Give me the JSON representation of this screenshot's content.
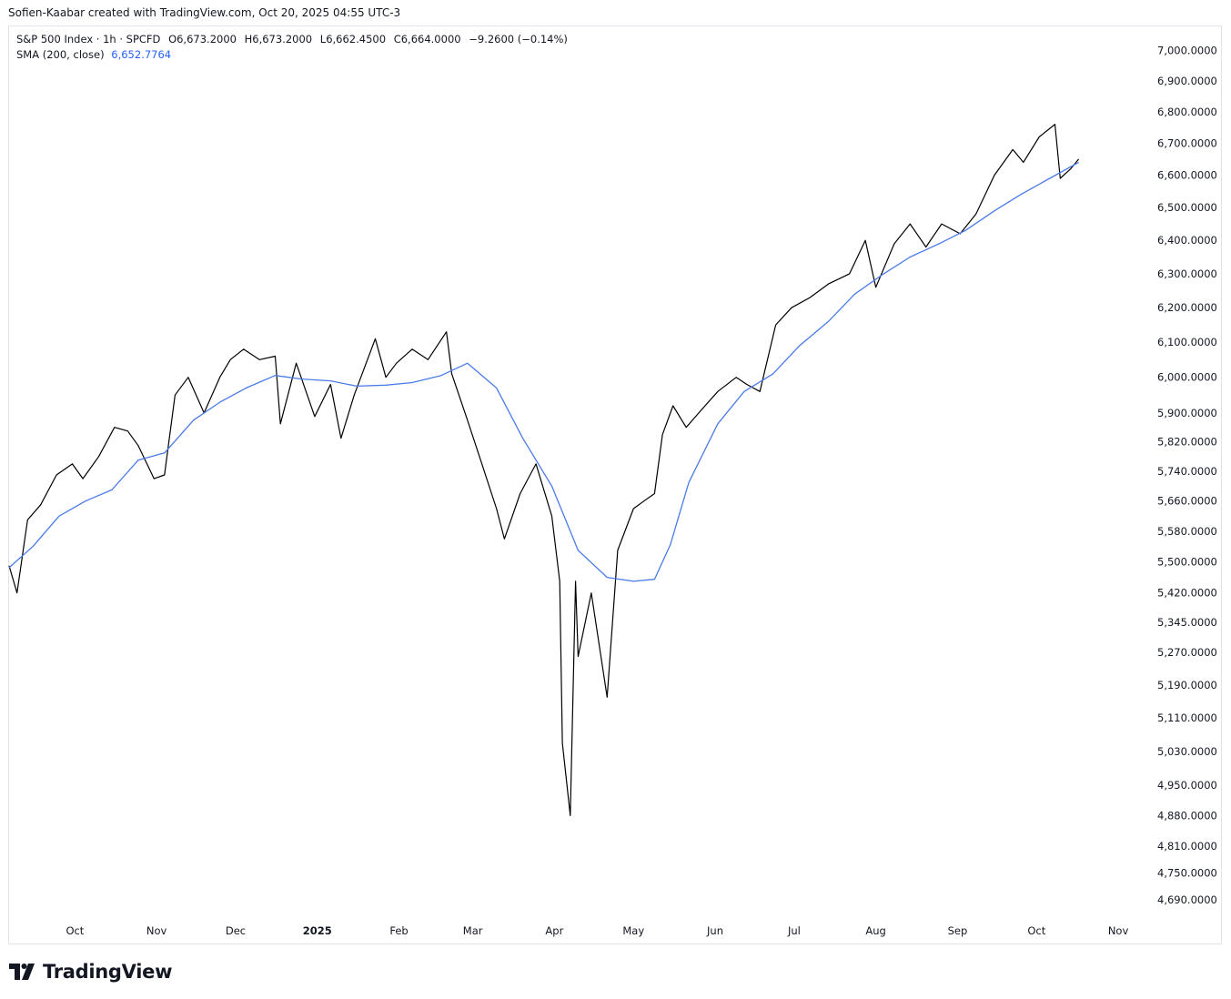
{
  "credit": "Sofien-Kaabar created with TradingView.com, Oct 20, 2025 04:55 UTC-3",
  "legend": {
    "symbol": "S&P 500 Index · 1h · SPCFD",
    "open": "O6,673.2000",
    "high": "H6,673.2000",
    "low": "L6,662.4500",
    "close": "C6,664.0000",
    "change": "−9.2600 (−0.14%)",
    "sma_label": "SMA (200, close)",
    "sma_value": "6,652.7764"
  },
  "brand": {
    "name": "TradingView",
    "logo_icon": "tradingview-logo-icon"
  },
  "colors": {
    "price": "#000000",
    "sma": "#4a7be8",
    "axis_text": "#131722"
  },
  "chart_data": {
    "type": "line",
    "scale": "log",
    "grid": false,
    "ylim": [
      4640,
      7040
    ],
    "y_ticks": [
      7000,
      6900,
      6800,
      6700,
      6600,
      6500,
      6400,
      6300,
      6200,
      6100,
      6000,
      5900,
      5820,
      5740,
      5660,
      5580,
      5500,
      5420,
      5345,
      5270,
      5190,
      5110,
      5030,
      4950,
      4880,
      4810,
      4750,
      4690
    ],
    "y_tick_labels": [
      "7,000.0000",
      "6,900.0000",
      "6,800.0000",
      "6,700.0000",
      "6,600.0000",
      "6,500.0000",
      "6,400.0000",
      "6,300.0000",
      "6,200.0000",
      "6,100.0000",
      "6,000.0000",
      "5,900.0000",
      "5,820.0000",
      "5,740.0000",
      "5,660.0000",
      "5,580.0000",
      "5,500.0000",
      "5,420.0000",
      "5,345.0000",
      "5,270.0000",
      "5,190.0000",
      "5,110.0000",
      "5,030.0000",
      "4,950.0000",
      "4,880.0000",
      "4,810.0000",
      "4,750.0000",
      "4,690.0000"
    ],
    "xlim": [
      "2024-09-06",
      "2025-11-11"
    ],
    "x_ticks": [
      {
        "label": "Oct",
        "date": "2024-10-01"
      },
      {
        "label": "Nov",
        "date": "2024-11-01"
      },
      {
        "label": "Dec",
        "date": "2024-12-01"
      },
      {
        "label": "2025",
        "date": "2025-01-01"
      },
      {
        "label": "Feb",
        "date": "2025-02-01"
      },
      {
        "label": "Mar",
        "date": "2025-03-01"
      },
      {
        "label": "Apr",
        "date": "2025-04-01"
      },
      {
        "label": "May",
        "date": "2025-05-01"
      },
      {
        "label": "Jun",
        "date": "2025-06-01"
      },
      {
        "label": "Jul",
        "date": "2025-07-01"
      },
      {
        "label": "Aug",
        "date": "2025-08-01"
      },
      {
        "label": "Sep",
        "date": "2025-09-01"
      },
      {
        "label": "Oct",
        "date": "2025-10-01"
      },
      {
        "label": "Nov",
        "date": "2025-11-01"
      }
    ],
    "series": [
      {
        "key": "price",
        "x": [
          "2024-09-06",
          "2024-09-09",
          "2024-09-13",
          "2024-09-18",
          "2024-09-24",
          "2024-09-30",
          "2024-10-04",
          "2024-10-10",
          "2024-10-16",
          "2024-10-21",
          "2024-10-25",
          "2024-10-31",
          "2024-11-04",
          "2024-11-08",
          "2024-11-13",
          "2024-11-19",
          "2024-11-25",
          "2024-11-29",
          "2024-12-04",
          "2024-12-10",
          "2024-12-16",
          "2024-12-18",
          "2024-12-24",
          "2024-12-31",
          "2025-01-06",
          "2025-01-10",
          "2025-01-15",
          "2025-01-23",
          "2025-01-27",
          "2025-01-31",
          "2025-02-06",
          "2025-02-12",
          "2025-02-19",
          "2025-02-21",
          "2025-02-27",
          "2025-03-04",
          "2025-03-10",
          "2025-03-13",
          "2025-03-19",
          "2025-03-25",
          "2025-03-31",
          "2025-04-03",
          "2025-04-04",
          "2025-04-07",
          "2025-04-09",
          "2025-04-10",
          "2025-04-15",
          "2025-04-21",
          "2025-04-25",
          "2025-05-01",
          "2025-05-05",
          "2025-05-09",
          "2025-05-12",
          "2025-05-16",
          "2025-05-21",
          "2025-05-27",
          "2025-06-02",
          "2025-06-09",
          "2025-06-13",
          "2025-06-18",
          "2025-06-24",
          "2025-06-30",
          "2025-07-07",
          "2025-07-14",
          "2025-07-22",
          "2025-07-28",
          "2025-08-01",
          "2025-08-08",
          "2025-08-14",
          "2025-08-20",
          "2025-08-26",
          "2025-09-02",
          "2025-09-08",
          "2025-09-15",
          "2025-09-22",
          "2025-09-26",
          "2025-10-02",
          "2025-10-08",
          "2025-10-10",
          "2025-10-14",
          "2025-10-17"
        ],
        "values": [
          5490,
          5420,
          5610,
          5650,
          5730,
          5760,
          5720,
          5780,
          5860,
          5850,
          5810,
          5720,
          5730,
          5950,
          6000,
          5900,
          6000,
          6050,
          6080,
          6050,
          6060,
          5870,
          6040,
          5890,
          5980,
          5830,
          5950,
          6110,
          6000,
          6040,
          6080,
          6050,
          6130,
          6010,
          5880,
          5770,
          5640,
          5560,
          5680,
          5760,
          5620,
          5450,
          5050,
          4880,
          5450,
          5260,
          5420,
          5160,
          5530,
          5640,
          5660,
          5680,
          5840,
          5920,
          5860,
          5910,
          5960,
          6000,
          5980,
          5960,
          6150,
          6200,
          6230,
          6270,
          6300,
          6400,
          6260,
          6390,
          6450,
          6380,
          6450,
          6420,
          6480,
          6600,
          6680,
          6640,
          6720,
          6760,
          6590,
          6620,
          6650
        ]
      },
      {
        "key": "sma",
        "x": [
          "2024-09-06",
          "2024-09-15",
          "2024-09-25",
          "2024-10-05",
          "2024-10-15",
          "2024-10-25",
          "2024-11-04",
          "2024-11-15",
          "2024-11-25",
          "2024-12-05",
          "2024-12-16",
          "2024-12-26",
          "2025-01-06",
          "2025-01-16",
          "2025-01-27",
          "2025-02-06",
          "2025-02-17",
          "2025-02-27",
          "2025-03-10",
          "2025-03-20",
          "2025-03-31",
          "2025-04-10",
          "2025-04-21",
          "2025-05-01",
          "2025-05-09",
          "2025-05-15",
          "2025-05-22",
          "2025-06-02",
          "2025-06-12",
          "2025-06-23",
          "2025-07-03",
          "2025-07-14",
          "2025-07-24",
          "2025-08-04",
          "2025-08-14",
          "2025-08-25",
          "2025-09-04",
          "2025-09-15",
          "2025-09-25",
          "2025-10-06",
          "2025-10-17"
        ],
        "values": [
          5485,
          5540,
          5620,
          5660,
          5690,
          5770,
          5790,
          5880,
          5930,
          5970,
          6005,
          5995,
          5990,
          5975,
          5978,
          5985,
          6005,
          6040,
          5970,
          5830,
          5700,
          5530,
          5460,
          5450,
          5455,
          5545,
          5710,
          5870,
          5960,
          6010,
          6090,
          6160,
          6240,
          6300,
          6350,
          6390,
          6430,
          6490,
          6540,
          6590,
          6640
        ]
      }
    ]
  }
}
